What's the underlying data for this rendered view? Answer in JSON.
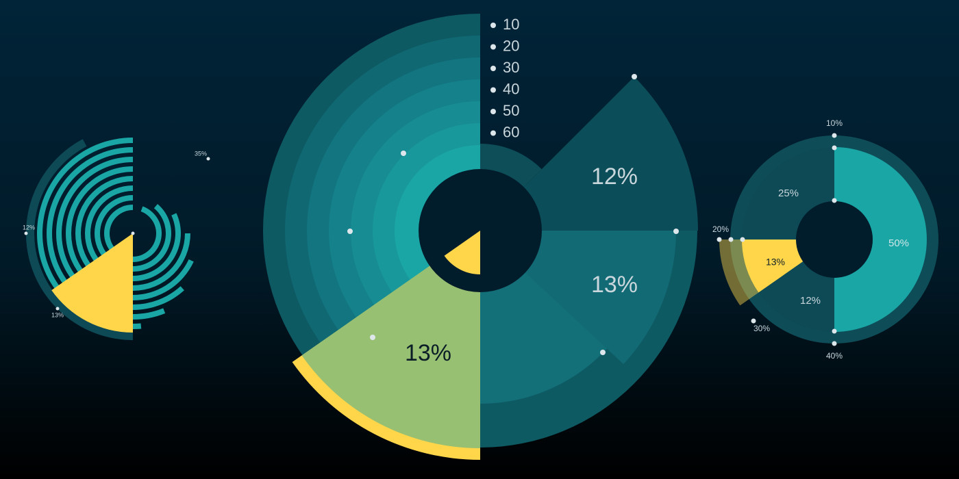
{
  "colors": {
    "background_top": "#012438",
    "background_bottom": "#000000",
    "teal_bright": "#1ba6a6",
    "teal_mid": "#15818a",
    "teal_dark": "#0d4a55",
    "yellow": "#ffd54a",
    "label_light": "#c9d6dc",
    "dot": "#dde6ea"
  },
  "chart_data": [
    {
      "id": "left",
      "type": "pie",
      "title": "",
      "values": [
        12,
        13,
        35
      ],
      "labels": [
        "12%",
        "13%",
        "35%"
      ],
      "highlight": "13%"
    },
    {
      "id": "center",
      "type": "pie",
      "title": "",
      "legend": [
        "10",
        "20",
        "30",
        "40",
        "50",
        "60"
      ],
      "legend_placement": "top",
      "labels": [
        "12%",
        "13%",
        "13%"
      ],
      "highlight": "13%"
    },
    {
      "id": "right",
      "type": "pie",
      "title": "",
      "values": [
        50,
        12,
        13,
        25
      ],
      "labels": [
        "50%",
        "12%",
        "13%",
        "25%"
      ],
      "scale_labels": [
        "10%",
        "20%",
        "30%",
        "40%"
      ],
      "highlight": "13%"
    }
  ]
}
